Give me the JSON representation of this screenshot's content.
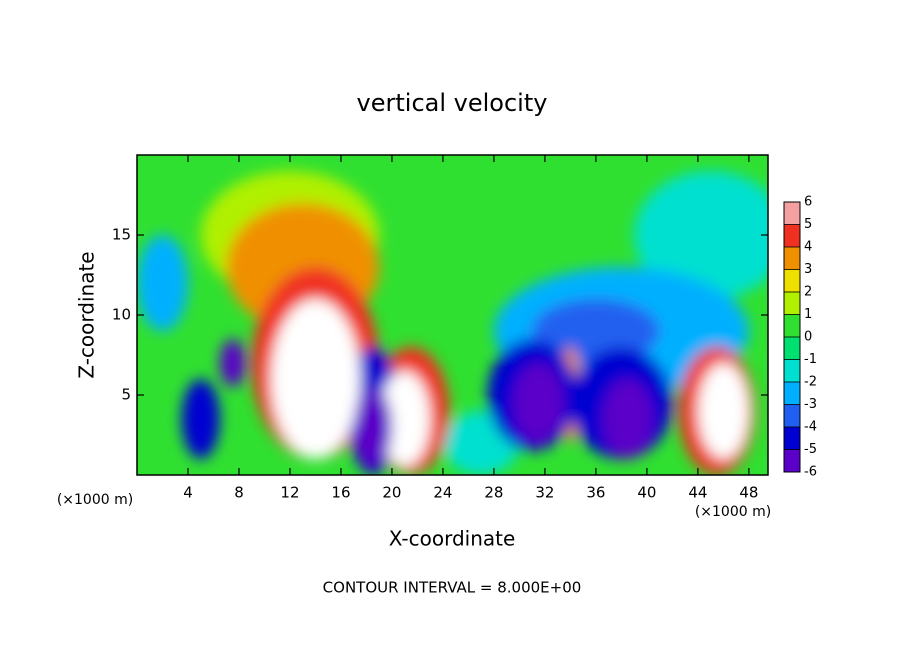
{
  "chart_data": {
    "type": "contour",
    "title": "vertical velocity",
    "x_label": "X-coordinate",
    "y_label": "Z-coordinate",
    "x_unit_left": "(×1000 m)",
    "x_unit_right": "(×1000 m)",
    "footer": "CONTOUR INTERVAL = 8.000E+00",
    "xlim": [
      0,
      49.5
    ],
    "ylim": [
      0,
      20
    ],
    "xticks": [
      4,
      8,
      12,
      16,
      20,
      24,
      28,
      32,
      36,
      40,
      44,
      48
    ],
    "yticks": [
      5,
      10,
      15
    ],
    "background_value": 0.5,
    "colorbar_ticks": [
      6,
      5,
      4,
      3,
      2,
      1,
      0,
      -1,
      -2,
      -3,
      -4,
      -5,
      -6
    ],
    "colors": [
      "#5a00c8",
      "#0000d0",
      "#2060f0",
      "#00b0ff",
      "#00e0d0",
      "#00e070",
      "#30e030",
      "#b0f000",
      "#f0e000",
      "#f09000",
      "#f03020",
      "#f4a0a0"
    ],
    "over_color": "#ffffff",
    "blobs": [
      {
        "x": 12,
        "z": 15,
        "rx": 7,
        "rz": 4,
        "value": 1.5
      },
      {
        "x": 45,
        "z": 15,
        "rx": 6,
        "rz": 4,
        "value": -1.5
      },
      {
        "x": 27,
        "z": 2,
        "rx": 3,
        "rz": 2,
        "value": -2
      },
      {
        "x": 38,
        "z": 9,
        "rx": 10,
        "rz": 4,
        "value": -2.5
      },
      {
        "x": 2,
        "z": 12,
        "rx": 2,
        "rz": 3,
        "value": -3
      },
      {
        "x": 13,
        "z": 13,
        "rx": 6,
        "rz": 4,
        "value": 3
      },
      {
        "x": 36,
        "z": 9,
        "rx": 5,
        "rz": 2,
        "value": -3.5
      },
      {
        "x": 34,
        "z": 5,
        "rx": 0.8,
        "rz": 3,
        "value": 3.5
      },
      {
        "x": 14,
        "z": 7,
        "rx": 5,
        "rz": 6,
        "value": 4.5
      },
      {
        "x": 21.5,
        "z": 4,
        "rx": 3,
        "rz": 4,
        "value": 4.5
      },
      {
        "x": 31,
        "z": 5,
        "rx": 3.5,
        "rz": 3.5,
        "value": -4.5
      },
      {
        "x": 38,
        "z": 4.5,
        "rx": 4,
        "rz": 3.5,
        "value": -4.5
      },
      {
        "x": 45.5,
        "z": 4,
        "rx": 3,
        "rz": 4,
        "value": 4.5
      },
      {
        "x": 18.5,
        "z": 4,
        "rx": 2,
        "rz": 4,
        "value": -4.5
      },
      {
        "x": 5,
        "z": 3.5,
        "rx": 1.5,
        "rz": 2.5,
        "value": -4.5
      },
      {
        "x": 7.5,
        "z": 7,
        "rx": 1,
        "rz": 1.5,
        "value": -6.5
      },
      {
        "x": 14,
        "z": 6,
        "rx": 3.5,
        "rz": 5,
        "value": 9
      },
      {
        "x": 21,
        "z": 3.5,
        "rx": 2,
        "rz": 3,
        "value": 7
      },
      {
        "x": 31.5,
        "z": 4.5,
        "rx": 2,
        "rz": 2.5,
        "value": -7
      },
      {
        "x": 38.5,
        "z": 3.5,
        "rx": 2,
        "rz": 2.5,
        "value": -7
      },
      {
        "x": 46,
        "z": 4,
        "rx": 2,
        "rz": 3,
        "value": 7
      },
      {
        "x": 18.5,
        "z": 3,
        "rx": 1.5,
        "rz": 2.5,
        "value": -7
      }
    ]
  }
}
